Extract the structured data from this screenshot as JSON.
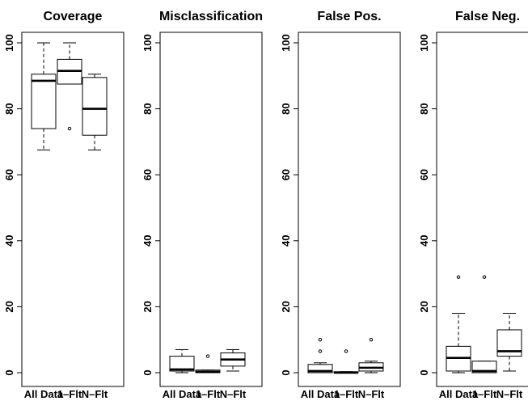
{
  "chart_data": [
    {
      "type": "box",
      "title": "Coverage",
      "categories": [
        "All Data",
        "1–Flt",
        "N–Flt"
      ],
      "ylim": [
        0,
        100
      ],
      "yticks": [
        0,
        20,
        40,
        60,
        80,
        100
      ],
      "grid": false,
      "boxes": [
        {
          "whisker_low": 67.5,
          "q1": 74,
          "median": 88.5,
          "q3": 90.5,
          "whisker_high": 100,
          "outliers": []
        },
        {
          "whisker_low": 87.5,
          "q1": 87.5,
          "median": 91.5,
          "q3": 95,
          "whisker_high": 100,
          "outliers": [
            74
          ]
        },
        {
          "whisker_low": 67.5,
          "q1": 72,
          "median": 80,
          "q3": 89.5,
          "whisker_high": 90.5,
          "outliers": []
        }
      ]
    },
    {
      "type": "box",
      "title": "Misclassification",
      "categories": [
        "All Data",
        "1–Flt",
        "N–Flt"
      ],
      "ylim": [
        0,
        100
      ],
      "yticks": [
        0,
        20,
        40,
        60,
        80,
        100
      ],
      "grid": false,
      "boxes": [
        {
          "whisker_low": 0,
          "q1": 0.5,
          "median": 1,
          "q3": 5,
          "whisker_high": 7,
          "outliers": []
        },
        {
          "whisker_low": 0,
          "q1": 0,
          "median": 0.3,
          "q3": 0.8,
          "whisker_high": 0.8,
          "outliers": [
            5
          ]
        },
        {
          "whisker_low": 0.5,
          "q1": 2,
          "median": 4,
          "q3": 6,
          "whisker_high": 7,
          "outliers": []
        }
      ]
    },
    {
      "type": "box",
      "title": "False Pos.",
      "categories": [
        "All Data",
        "1–Flt",
        "N–Flt"
      ],
      "ylim": [
        0,
        100
      ],
      "yticks": [
        0,
        20,
        40,
        60,
        80,
        100
      ],
      "grid": false,
      "boxes": [
        {
          "whisker_low": 0,
          "q1": 0,
          "median": 0.5,
          "q3": 2.5,
          "whisker_high": 3,
          "outliers": [
            6.5,
            10
          ]
        },
        {
          "whisker_low": 0,
          "q1": 0,
          "median": 0,
          "q3": 0.3,
          "whisker_high": 0.3,
          "outliers": [
            6.5
          ]
        },
        {
          "whisker_low": 0,
          "q1": 0.5,
          "median": 1.5,
          "q3": 3,
          "whisker_high": 3.5,
          "outliers": [
            10
          ]
        }
      ]
    },
    {
      "type": "box",
      "title": "False Neg.",
      "categories": [
        "All Data",
        "1–Flt",
        "N–Flt"
      ],
      "ylim": [
        0,
        100
      ],
      "yticks": [
        0,
        20,
        40,
        60,
        80,
        100
      ],
      "grid": false,
      "boxes": [
        {
          "whisker_low": 0,
          "q1": 0.5,
          "median": 4.5,
          "q3": 8,
          "whisker_high": 18,
          "outliers": [
            29
          ]
        },
        {
          "whisker_low": 0,
          "q1": 0,
          "median": 0.5,
          "q3": 3.5,
          "whisker_high": 3.5,
          "outliers": [
            29
          ]
        },
        {
          "whisker_low": 0.5,
          "q1": 5,
          "median": 6.5,
          "q3": 13,
          "whisker_high": 18,
          "outliers": []
        }
      ]
    }
  ]
}
